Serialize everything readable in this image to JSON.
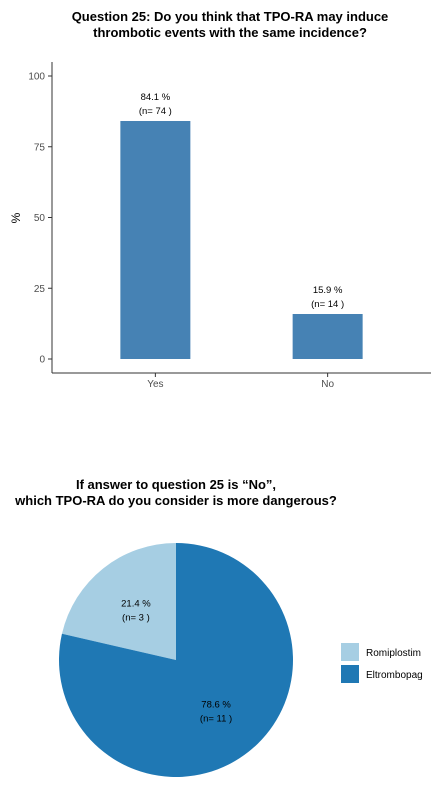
{
  "chart_data": [
    {
      "type": "bar",
      "title_lines": [
        "Question 25: Do you think that TPO-RA may induce",
        "thrombotic events with the same incidence?"
      ],
      "ylabel": "%",
      "categories": [
        "Yes",
        "No"
      ],
      "values": [
        84.1,
        15.9
      ],
      "value_labels": [
        "84.1 %",
        "15.9 %"
      ],
      "count_labels": [
        "(n= 74 )",
        "(n= 14 )"
      ],
      "ylim": [
        0,
        100
      ],
      "yticks": [
        0,
        25,
        50,
        75,
        100
      ],
      "ytick_labels": [
        "0",
        "25",
        "50",
        "75",
        "100"
      ],
      "grid": false,
      "bar_color": "#4682b4"
    },
    {
      "type": "pie",
      "title_lines": [
        "If answer to question 25 is “No”,",
        "which TPO-RA do you consider is more dangerous?"
      ],
      "categories": [
        "Romiplostim",
        "Eltrombopag"
      ],
      "values": [
        21.4,
        78.6
      ],
      "value_labels": [
        "21.4 %",
        "78.6 %"
      ],
      "count_labels": [
        "(n= 3 )",
        "(n= 11 )"
      ],
      "colors": [
        "#a6cee3",
        "#1f78b4"
      ],
      "legend_position": "right",
      "legend": [
        "Romiplostim",
        "Eltrombopag"
      ]
    }
  ]
}
